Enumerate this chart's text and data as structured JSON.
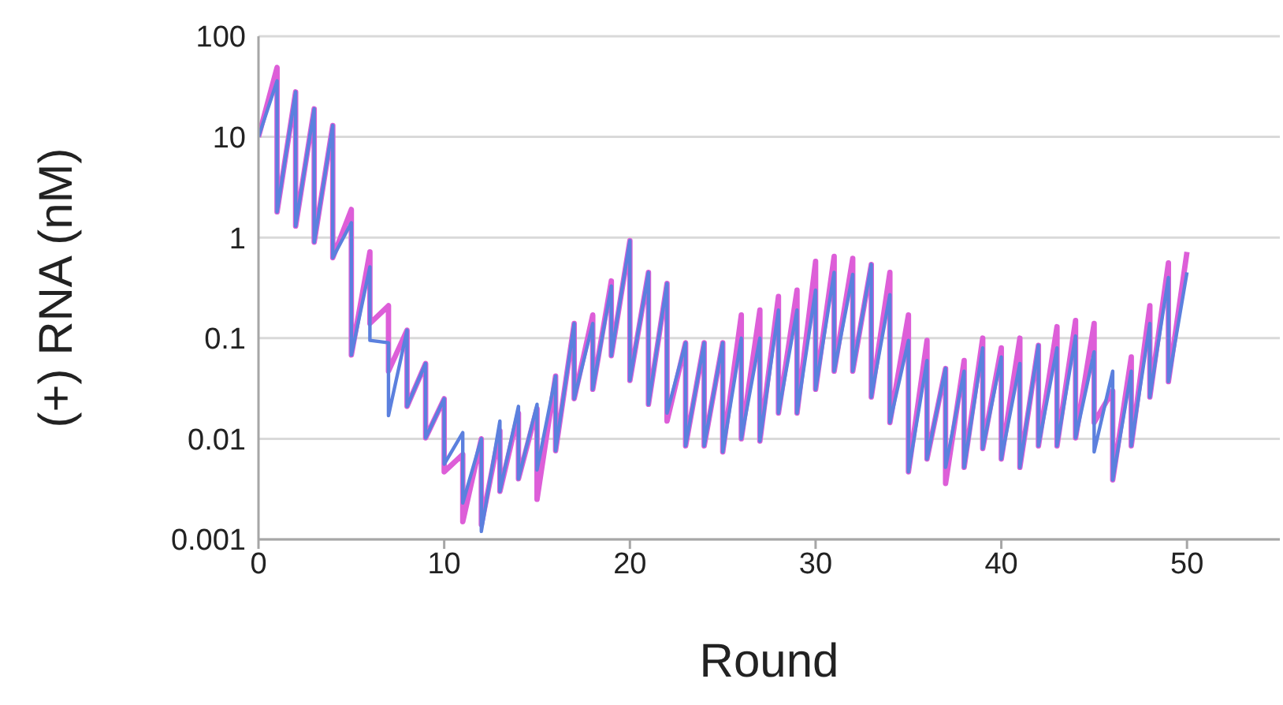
{
  "chart_data": {
    "type": "line",
    "xlabel": "Round",
    "ylabel": "(+) RNA (nM)",
    "log": "y",
    "grid": "y",
    "marker": "none",
    "line_style": "solid",
    "xlim": [
      0,
      55
    ],
    "xticks": [
      0,
      10,
      20,
      30,
      40,
      50
    ],
    "ylim": [
      0.001,
      100
    ],
    "yticks": [
      0.001,
      0.01,
      0.1,
      1,
      10,
      100
    ],
    "x": [
      0,
      1,
      1,
      2,
      2,
      3,
      3,
      4,
      4,
      5,
      5,
      6,
      6,
      7,
      7,
      8,
      8,
      9,
      9,
      10,
      10,
      11,
      11,
      12,
      12,
      13,
      13,
      14,
      14,
      15,
      15,
      16,
      16,
      17,
      17,
      18,
      18,
      19,
      19,
      20,
      20,
      21,
      21,
      22,
      22,
      23,
      23,
      24,
      24,
      25,
      25,
      26,
      26,
      27,
      27,
      28,
      28,
      29,
      29,
      30,
      30,
      31,
      31,
      32,
      32,
      33,
      33,
      34,
      34,
      35,
      35,
      36,
      36,
      37,
      37,
      38,
      38,
      39,
      39,
      40,
      40,
      41,
      41,
      42,
      42,
      43,
      43,
      44,
      44,
      45,
      45,
      46,
      46,
      47,
      47,
      48,
      48,
      49,
      49,
      50
    ],
    "series": [
      {
        "color": "#dd5ed8",
        "values": [
          10,
          49,
          1.8,
          28,
          1.3,
          19,
          0.9,
          13,
          0.63,
          1.9,
          0.068,
          0.72,
          0.14,
          0.21,
          0.047,
          0.12,
          0.021,
          0.056,
          0.0102,
          0.025,
          0.0047,
          0.007,
          0.0015,
          0.01,
          0.0014,
          0.012,
          0.003,
          0.018,
          0.004,
          0.02,
          0.0025,
          0.042,
          0.0076,
          0.14,
          0.025,
          0.17,
          0.031,
          0.37,
          0.067,
          0.93,
          0.038,
          0.45,
          0.022,
          0.35,
          0.015,
          0.09,
          0.0085,
          0.09,
          0.0085,
          0.09,
          0.0074,
          0.17,
          0.01,
          0.19,
          0.0095,
          0.26,
          0.018,
          0.3,
          0.018,
          0.58,
          0.031,
          0.65,
          0.047,
          0.62,
          0.047,
          0.54,
          0.026,
          0.45,
          0.0145,
          0.17,
          0.0047,
          0.095,
          0.0063,
          0.05,
          0.0036,
          0.06,
          0.0052,
          0.1,
          0.008,
          0.08,
          0.0063,
          0.1,
          0.0052,
          0.085,
          0.0085,
          0.13,
          0.0085,
          0.15,
          0.0102,
          0.14,
          0.0145,
          0.03,
          0.0039,
          0.065,
          0.0085,
          0.21,
          0.026,
          0.56,
          0.037,
          0.72
        ]
      },
      {
        "color": "#5b80de",
        "values": [
          10,
          36,
          1.8,
          28,
          1.3,
          19,
          0.9,
          13,
          0.63,
          1.4,
          0.068,
          0.51,
          0.095,
          0.09,
          0.017,
          0.12,
          0.021,
          0.056,
          0.0102,
          0.025,
          0.0056,
          0.0115,
          0.0023,
          0.01,
          0.0012,
          0.015,
          0.003,
          0.021,
          0.004,
          0.022,
          0.0049,
          0.042,
          0.0076,
          0.14,
          0.025,
          0.14,
          0.031,
          0.33,
          0.067,
          0.93,
          0.038,
          0.45,
          0.022,
          0.35,
          0.018,
          0.09,
          0.0085,
          0.09,
          0.0085,
          0.09,
          0.0074,
          0.1,
          0.01,
          0.1,
          0.0095,
          0.19,
          0.018,
          0.19,
          0.018,
          0.3,
          0.031,
          0.45,
          0.047,
          0.43,
          0.047,
          0.54,
          0.026,
          0.27,
          0.0145,
          0.095,
          0.0047,
          0.06,
          0.0063,
          0.05,
          0.0052,
          0.047,
          0.0052,
          0.08,
          0.008,
          0.065,
          0.0063,
          0.056,
          0.0052,
          0.085,
          0.0085,
          0.08,
          0.0085,
          0.105,
          0.0102,
          0.073,
          0.0074,
          0.047,
          0.0039,
          0.047,
          0.0085,
          0.14,
          0.026,
          0.4,
          0.037,
          0.45
        ]
      }
    ]
  }
}
